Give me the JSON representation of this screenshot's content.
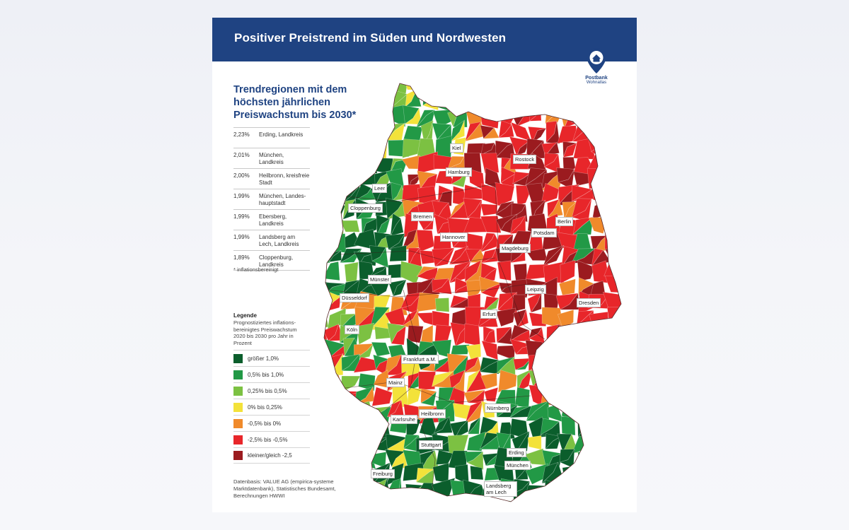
{
  "header": {
    "title": "Positiver Preistrend im Süden und Nordwesten"
  },
  "logo": {
    "name": "Postbank",
    "sub": "Wohnatlas",
    "color": "#1f4382"
  },
  "subtitle": "Trendregionen mit dem höchsten jährlichen Preiswachstum bis 2030*",
  "ranking": [
    {
      "value": "2,23%",
      "region": "Erding, Landkreis"
    },
    {
      "value": "2,01%",
      "region": "München, Landkreis"
    },
    {
      "value": "2,00%",
      "region": "Heilbronn, kreisfreie Stadt"
    },
    {
      "value": "1,99%",
      "region": "München, Landes-hauptstadt"
    },
    {
      "value": "1,99%",
      "region": "Ebersberg, Landkreis"
    },
    {
      "value": "1,99%",
      "region": "Landsberg am Lech, Landkreis"
    },
    {
      "value": "1,89%",
      "region": "Cloppenburg, Landkreis"
    }
  ],
  "footnote": "* inflationsbereinigt",
  "legend": {
    "title": "Legende",
    "description": "Prognostiziertes inflations-bereinigtes Preiswachstum 2020 bis 2030 pro Jahr in Prozent",
    "items": [
      {
        "label": "größer 1,0%",
        "color": "#0b5e2c"
      },
      {
        "label": "0,5% bis 1,0%",
        "color": "#229946"
      },
      {
        "label": "0,25% bis 0,5%",
        "color": "#7cc142"
      },
      {
        "label": "0% bis 0,25%",
        "color": "#f3e23a"
      },
      {
        "label": "-0,5% bis 0%",
        "color": "#f08a2b"
      },
      {
        "label": "-2,5% bis -0,5%",
        "color": "#e8262a"
      },
      {
        "label": "kleiner/gleich -2,5",
        "color": "#9b1b1f"
      }
    ]
  },
  "source": "Datenbasis: VALUE AG (empirica-systeme Marktdatenbank), Statistisches Bundesamt, Berechnungen HWWI",
  "cities": [
    {
      "name": "Kiel"
    },
    {
      "name": "Rostock"
    },
    {
      "name": "Hamburg"
    },
    {
      "name": "Leer"
    },
    {
      "name": "Cloppenburg"
    },
    {
      "name": "Bremen"
    },
    {
      "name": "Berlin"
    },
    {
      "name": "Potsdam"
    },
    {
      "name": "Hannover"
    },
    {
      "name": "Magdeburg"
    },
    {
      "name": "Münster"
    },
    {
      "name": "Leipzig"
    },
    {
      "name": "Düsseldorf"
    },
    {
      "name": "Dresden"
    },
    {
      "name": "Erfurt"
    },
    {
      "name": "Köln"
    },
    {
      "name": "Frankfurt a.M."
    },
    {
      "name": "Mainz"
    },
    {
      "name": "Nürnberg"
    },
    {
      "name": "Heilbronn"
    },
    {
      "name": "Karlsruhe"
    },
    {
      "name": "Stuttgart"
    },
    {
      "name": "Erding"
    },
    {
      "name": "München"
    },
    {
      "name": "Freiburg"
    },
    {
      "name": "Landsberg am Lech"
    }
  ],
  "region_colors": {
    "green_dark": "#0b5e2c",
    "green": "#229946",
    "green_light": "#7cc142",
    "yellow": "#f3e23a",
    "orange": "#f08a2b",
    "red": "#e8262a",
    "red_dark": "#9b1b1f"
  }
}
